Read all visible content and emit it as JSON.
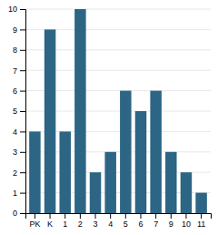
{
  "chart_data": {
    "type": "bar",
    "categories": [
      "PK",
      "K",
      "1",
      "2",
      "3",
      "4",
      "5",
      "6",
      "7",
      "9",
      "10",
      "11"
    ],
    "values": [
      4,
      9,
      4,
      10,
      2,
      3,
      6,
      5,
      6,
      3,
      2,
      1
    ],
    "color": "#2d6585",
    "ylim": [
      0,
      10
    ],
    "yticks": [
      0,
      1,
      2,
      3,
      4,
      5,
      6,
      7,
      8,
      9,
      10
    ],
    "grid": true
  }
}
